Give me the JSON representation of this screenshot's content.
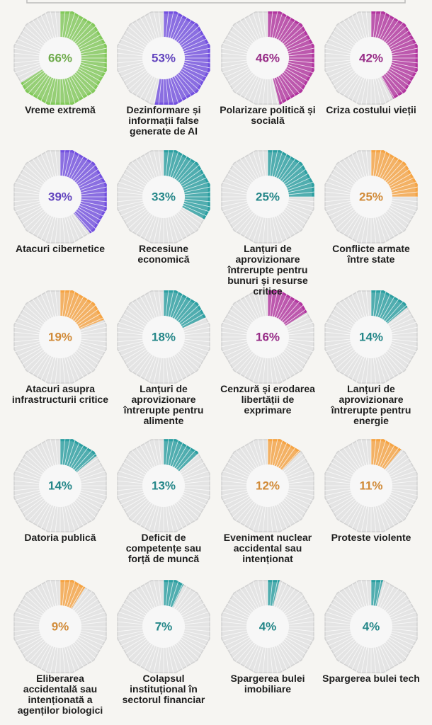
{
  "chart_data": {
    "type": "polar-gauge",
    "categories": [
      "Vreme extremă",
      "Dezinformare și informații false generate de AI",
      "Polarizare politică și socială",
      "Criza costului vieții",
      "Atacuri cibernetice",
      "Recesiune economică",
      "Lanțuri de aprovizionare întrerupte pentru bunuri și resurse critice",
      "Conflicte armate între state",
      "Atacuri asupra infrastructurii critice",
      "Lanțuri de aprovizionare întrerupte pentru alimente",
      "Cenzură și erodarea libertății de exprimare",
      "Lanțuri de aprovizionare întrerupte pentru energie",
      "Datoria publică",
      "Deficit de competențe sau forță de muncă",
      "Eveniment nuclear accidental sau intenționat",
      "Proteste violente",
      "Eliberarea accidentală sau intenționată a agenților biologici",
      "Colapsul instituțional în sectorul financiar",
      "Spargerea bulei imobiliare",
      "Spargerea bulei tech"
    ],
    "values": [
      66,
      53,
      46,
      42,
      39,
      33,
      25,
      25,
      19,
      18,
      16,
      14,
      14,
      13,
      12,
      11,
      9,
      7,
      4,
      4
    ],
    "value_labels": [
      "66%",
      "53%",
      "46%",
      "42%",
      "39%",
      "33%",
      "25%",
      "25%",
      "19%",
      "18%",
      "16%",
      "14%",
      "14%",
      "13%",
      "12%",
      "11%",
      "9%",
      "7%",
      "4%",
      "4%"
    ],
    "colors": [
      "#82c95a",
      "#7350e0",
      "#b2349f",
      "#b2349f",
      "#7350e0",
      "#2b9fa1",
      "#2b9fa1",
      "#f6a443",
      "#f6a443",
      "#2b9fa1",
      "#b2349f",
      "#2b9fa1",
      "#2b9fa1",
      "#2b9fa1",
      "#f6a443",
      "#f6a443",
      "#f6a443",
      "#2b9fa1",
      "#2b9fa1",
      "#2b9fa1"
    ]
  }
}
